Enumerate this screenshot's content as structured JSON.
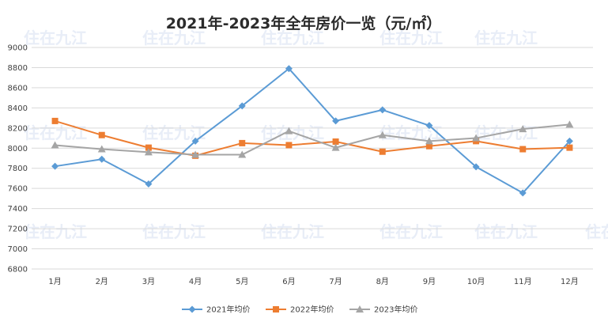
{
  "chart_data": {
    "type": "line",
    "title": "2021年-2023年全年房价一览（元/㎡）",
    "categories": [
      "1月",
      "2月",
      "3月",
      "4月",
      "5月",
      "6月",
      "7月",
      "8月",
      "9月",
      "10月",
      "11月",
      "12月"
    ],
    "ylim": [
      6800,
      9000
    ],
    "yticks": [
      6800,
      7000,
      7200,
      7400,
      7600,
      7800,
      8000,
      8200,
      8400,
      8600,
      8800,
      9000
    ],
    "grid": true,
    "legend_position": "bottom",
    "series": [
      {
        "name": "2021年均价",
        "color": "#5b9bd5",
        "marker": "diamond",
        "values": [
          7820,
          7890,
          7645,
          8070,
          8420,
          8790,
          8270,
          8380,
          8225,
          7815,
          7555,
          8070
        ]
      },
      {
        "name": "2022年均价",
        "color": "#ed7d31",
        "marker": "square",
        "values": [
          8270,
          8130,
          8005,
          7925,
          8050,
          8030,
          8065,
          7965,
          8020,
          8070,
          7990,
          8005
        ]
      },
      {
        "name": "2023年均价",
        "color": "#a5a5a5",
        "marker": "triangle",
        "values": [
          8030,
          7990,
          7960,
          7935,
          7935,
          8170,
          8005,
          8130,
          8070,
          8100,
          8190,
          8235
        ]
      }
    ]
  },
  "watermark": {
    "text": "住在九江"
  }
}
